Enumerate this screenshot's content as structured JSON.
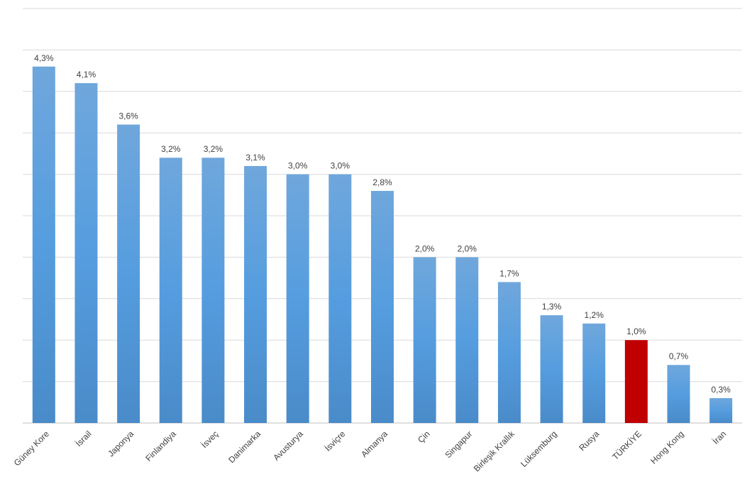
{
  "chart_data": {
    "type": "bar",
    "title": "",
    "xlabel": "",
    "ylabel": "",
    "ylim": [
      0,
      5.0
    ],
    "grid": true,
    "legend": "none",
    "categories": [
      "Güney Kore",
      "İsrail",
      "Japonya",
      "Finlandiya",
      "İsveç",
      "Danimarka",
      "Avusturya",
      "İsviçre",
      "Almanya",
      "Çin",
      "Singapur",
      "Birleşik Krallık",
      "Lüksemburg",
      "Rusya",
      "TÜRKİYE",
      "Hong Kong",
      "İran"
    ],
    "values": [
      4.3,
      4.1,
      3.6,
      3.2,
      3.2,
      3.1,
      3.0,
      3.0,
      2.8,
      2.0,
      2.0,
      1.7,
      1.3,
      1.2,
      1.0,
      0.7,
      0.3
    ],
    "value_labels": [
      "4,3%",
      "4,1%",
      "3,6%",
      "3,2%",
      "3,2%",
      "3,1%",
      "3,0%",
      "3,0%",
      "2,8%",
      "2,0%",
      "2,0%",
      "1,7%",
      "1,3%",
      "1,2%",
      "1,0%",
      "0,7%",
      "0,3%"
    ],
    "colors": {
      "bar": "#5b9bd5",
      "highlight": "#c00000",
      "highlight_category": "TÜRKİYE"
    }
  }
}
